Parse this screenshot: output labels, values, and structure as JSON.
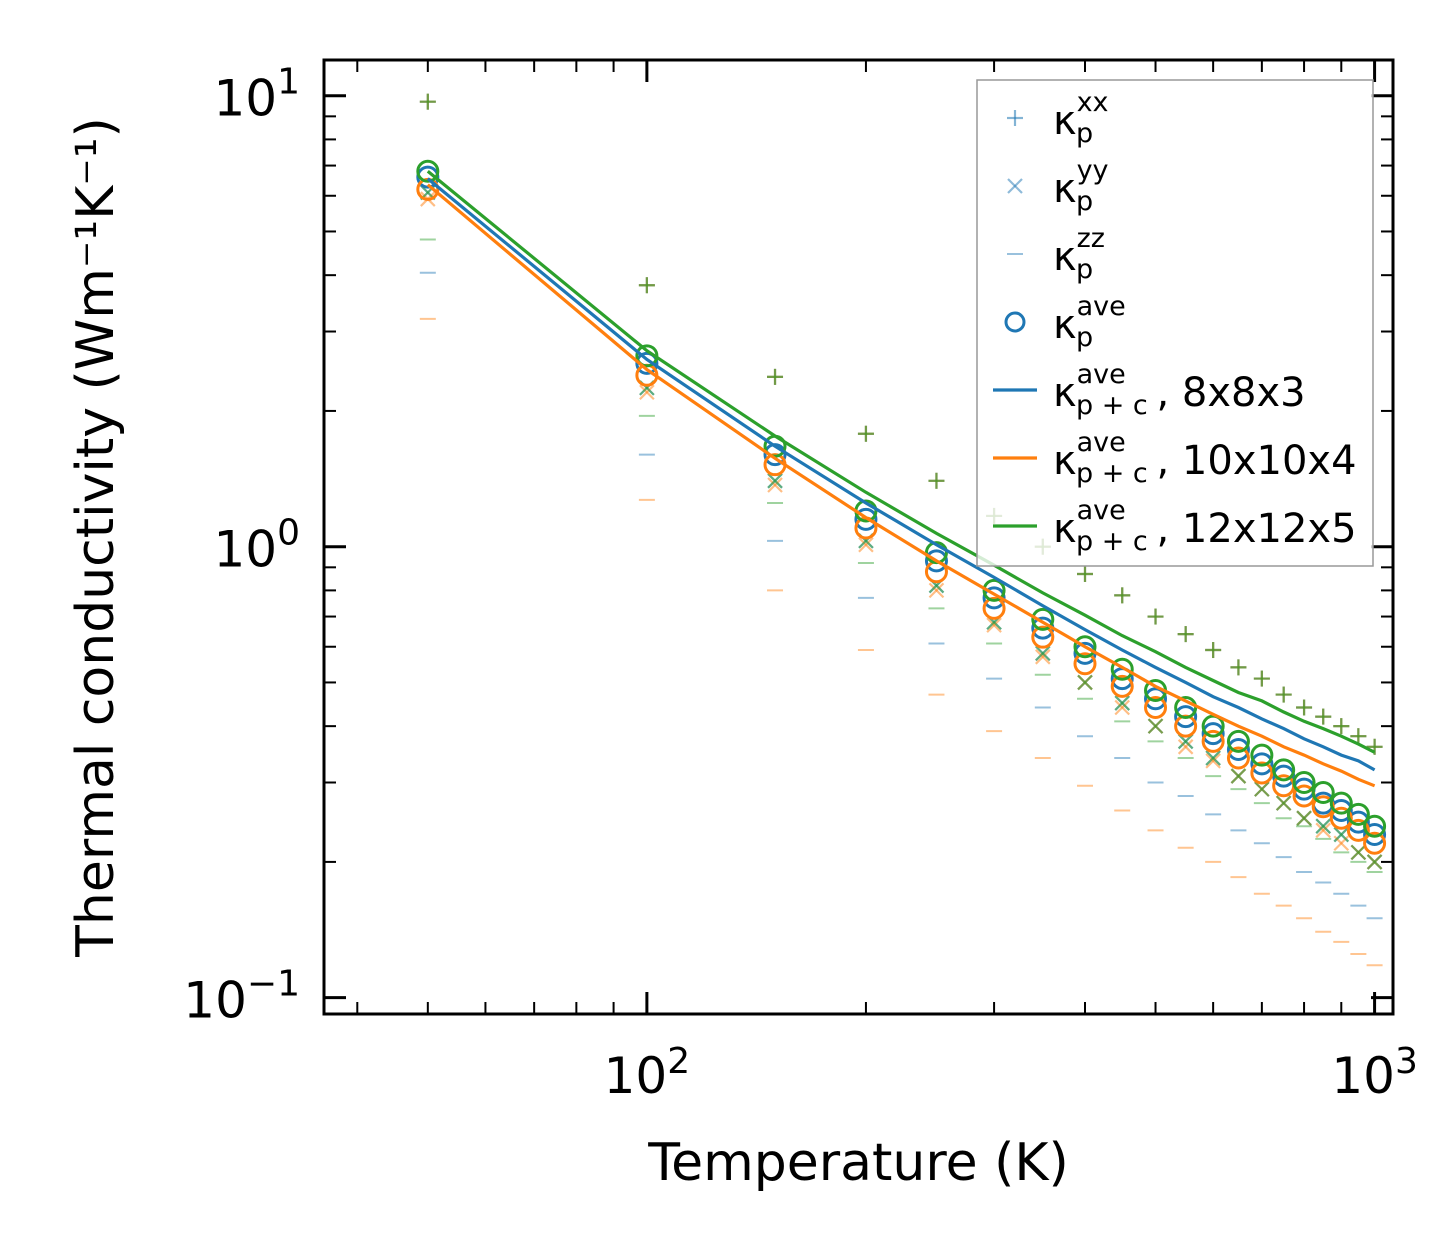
{
  "chart_data": {
    "type": "scatter",
    "xscale": "log",
    "yscale": "log",
    "xlabel": "Temperature (K)",
    "ylabel": "Thermal conductivity (Wm⁻¹K⁻¹)",
    "xlim": [
      36,
      1060
    ],
    "ylim": [
      0.092,
      12
    ],
    "xticks": [
      {
        "value": 100,
        "base": "10",
        "exp": "2"
      },
      {
        "value": 1000,
        "base": "10",
        "exp": "3"
      }
    ],
    "yticks": [
      {
        "value": 0.1,
        "base": "10",
        "exp": "−1"
      },
      {
        "value": 1,
        "base": "10",
        "exp": "0"
      },
      {
        "value": 10,
        "base": "10",
        "exp": "1"
      }
    ],
    "colors": {
      "blue": "#1f77b4",
      "orange": "#ff7f0e",
      "green": "#2ca02c",
      "mixed_plus": "#6b8e4e",
      "mixed_x": "#8a8f6a"
    },
    "temperatures": [
      50,
      100,
      150,
      200,
      250,
      300,
      350,
      400,
      450,
      500,
      550,
      600,
      650,
      700,
      750,
      800,
      850,
      900,
      950,
      1000
    ],
    "series": [
      {
        "name": "8x8x3",
        "color": "#1f77b4",
        "kxx": [
          9.7,
          3.8,
          2.38,
          1.78,
          1.4,
          1.17,
          1.0,
          0.87,
          0.78,
          0.7,
          0.64,
          0.59,
          0.54,
          0.51,
          0.47,
          0.44,
          0.42,
          0.4,
          0.38,
          0.36
        ],
        "kyy": [
          6.1,
          2.25,
          1.4,
          1.03,
          0.82,
          0.68,
          0.58,
          0.5,
          0.45,
          0.4,
          0.37,
          0.34,
          0.31,
          0.29,
          0.27,
          0.25,
          0.24,
          0.23,
          0.21,
          0.2
        ],
        "kzz": [
          4.05,
          1.6,
          1.03,
          0.77,
          0.61,
          0.51,
          0.44,
          0.38,
          0.34,
          0.3,
          0.28,
          0.255,
          0.235,
          0.22,
          0.205,
          0.19,
          0.18,
          0.17,
          0.16,
          0.15
        ],
        "kave": [
          6.6,
          2.55,
          1.6,
          1.15,
          0.93,
          0.77,
          0.66,
          0.58,
          0.51,
          0.46,
          0.42,
          0.385,
          0.355,
          0.33,
          0.31,
          0.29,
          0.27,
          0.26,
          0.245,
          0.23
        ],
        "kpc": [
          6.55,
          2.6,
          1.67,
          1.25,
          1.01,
          0.855,
          0.74,
          0.655,
          0.59,
          0.54,
          0.5,
          0.465,
          0.44,
          0.415,
          0.395,
          0.375,
          0.36,
          0.345,
          0.335,
          0.32
        ]
      },
      {
        "name": "10x10x4",
        "color": "#ff7f0e",
        "kxx": [
          9.7,
          3.8,
          2.38,
          1.78,
          1.4,
          1.17,
          1.0,
          0.87,
          0.78,
          0.7,
          0.64,
          0.59,
          0.54,
          0.51,
          0.47,
          0.44,
          0.42,
          0.4,
          0.38,
          0.36
        ],
        "kyy": [
          5.9,
          2.2,
          1.37,
          1.01,
          0.8,
          0.67,
          0.57,
          0.5,
          0.44,
          0.4,
          0.36,
          0.335,
          0.31,
          0.29,
          0.27,
          0.25,
          0.235,
          0.22,
          0.21,
          0.2
        ],
        "kzz": [
          3.2,
          1.27,
          0.8,
          0.59,
          0.47,
          0.39,
          0.34,
          0.295,
          0.26,
          0.235,
          0.215,
          0.2,
          0.185,
          0.17,
          0.16,
          0.15,
          0.14,
          0.133,
          0.125,
          0.118
        ],
        "kave": [
          6.2,
          2.4,
          1.52,
          1.1,
          0.88,
          0.73,
          0.63,
          0.55,
          0.49,
          0.44,
          0.4,
          0.37,
          0.34,
          0.315,
          0.295,
          0.28,
          0.265,
          0.25,
          0.235,
          0.22
        ],
        "kpc": [
          6.35,
          2.47,
          1.57,
          1.16,
          0.93,
          0.785,
          0.68,
          0.6,
          0.54,
          0.49,
          0.455,
          0.425,
          0.4,
          0.38,
          0.36,
          0.345,
          0.33,
          0.318,
          0.305,
          0.295
        ]
      },
      {
        "name": "12x12x5",
        "color": "#2ca02c",
        "kxx": [
          9.7,
          3.8,
          2.38,
          1.78,
          1.4,
          1.17,
          1.0,
          0.87,
          0.78,
          0.7,
          0.64,
          0.59,
          0.54,
          0.51,
          0.47,
          0.44,
          0.42,
          0.4,
          0.38,
          0.36
        ],
        "kyy": [
          6.1,
          2.25,
          1.4,
          1.03,
          0.82,
          0.68,
          0.58,
          0.5,
          0.45,
          0.4,
          0.37,
          0.34,
          0.31,
          0.29,
          0.27,
          0.25,
          0.24,
          0.23,
          0.21,
          0.2
        ],
        "kzz": [
          4.8,
          1.95,
          1.25,
          0.92,
          0.73,
          0.61,
          0.52,
          0.46,
          0.41,
          0.37,
          0.34,
          0.31,
          0.29,
          0.27,
          0.25,
          0.24,
          0.225,
          0.21,
          0.2,
          0.19
        ],
        "kave": [
          6.8,
          2.65,
          1.67,
          1.2,
          0.97,
          0.8,
          0.69,
          0.6,
          0.535,
          0.48,
          0.44,
          0.4,
          0.37,
          0.345,
          0.32,
          0.3,
          0.285,
          0.27,
          0.255,
          0.24
        ],
        "kpc": [
          6.8,
          2.72,
          1.76,
          1.32,
          1.07,
          0.91,
          0.79,
          0.705,
          0.635,
          0.585,
          0.54,
          0.505,
          0.475,
          0.455,
          0.43,
          0.41,
          0.395,
          0.38,
          0.365,
          0.35
        ]
      }
    ],
    "legend": {
      "position": "top-right",
      "entries": [
        {
          "marker": "plus",
          "sym": "κ",
          "sub": "p",
          "sup": "xx",
          "suffix": "",
          "color": "#1f77b4"
        },
        {
          "marker": "x",
          "sym": "κ",
          "sub": "p",
          "sup": "yy",
          "suffix": "",
          "color": "#1f77b4"
        },
        {
          "marker": "dash",
          "sym": "κ",
          "sub": "p",
          "sup": "zz",
          "suffix": "",
          "color": "#1f77b4"
        },
        {
          "marker": "circle",
          "sym": "κ",
          "sub": "p",
          "sup": "ave",
          "suffix": "",
          "color": "#1f77b4"
        },
        {
          "marker": "line",
          "sym": "κ",
          "sub": "p + c",
          "sup": "ave",
          "suffix": ", 8x8x3",
          "color": "#1f77b4"
        },
        {
          "marker": "line",
          "sym": "κ",
          "sub": "p + c",
          "sup": "ave",
          "suffix": ", 10x10x4",
          "color": "#ff7f0e"
        },
        {
          "marker": "line",
          "sym": "κ",
          "sub": "p + c",
          "sup": "ave",
          "suffix": ", 12x12x5",
          "color": "#2ca02c"
        }
      ]
    }
  }
}
